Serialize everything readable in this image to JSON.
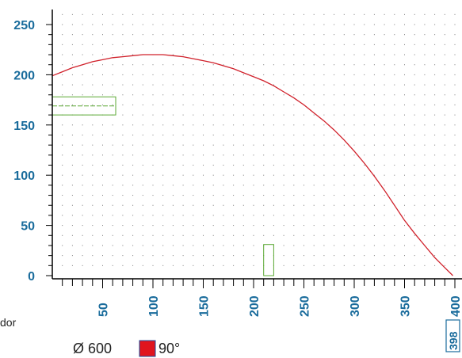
{
  "chart_data": {
    "type": "line",
    "title": "",
    "xlabel": "",
    "ylabel": "",
    "x_ticks": [
      50,
      100,
      150,
      200,
      250,
      300,
      350,
      400
    ],
    "y_ticks": [
      0,
      50,
      100,
      150,
      200,
      250
    ],
    "xlim": [
      0,
      400
    ],
    "ylim": [
      0,
      255
    ],
    "grid": true,
    "series": [
      {
        "x": [
          0,
          10,
          20,
          30,
          40,
          50,
          60,
          70,
          80,
          90,
          100,
          110,
          120,
          130,
          140,
          150,
          160,
          170,
          180,
          190,
          200,
          210,
          220,
          230,
          240,
          250,
          260,
          270,
          280,
          290,
          300,
          310,
          320,
          330,
          340,
          350,
          360,
          370,
          380,
          390,
          398
        ],
        "y": [
          199,
          203,
          207,
          210,
          213,
          215,
          217,
          218,
          219,
          220,
          220,
          220,
          219,
          218,
          216,
          214,
          212,
          209,
          206,
          202,
          198,
          194,
          189,
          183,
          177,
          170,
          162,
          154,
          145,
          135,
          124,
          112,
          99,
          85,
          70,
          55,
          42,
          30,
          18,
          8,
          0
        ],
        "color": "#d0202a"
      }
    ],
    "rects": [
      {
        "x0": 0,
        "x1": 63,
        "y0": 160,
        "y1": 178,
        "color": "#5aa832"
      },
      {
        "x0": 210,
        "x1": 220,
        "y0": 0,
        "y1": 31,
        "color": "#5aa832"
      }
    ],
    "left_partial_label": "dor",
    "diameter_label": "Ø 600",
    "angle_label": "90°",
    "angle_color": "#e0141e",
    "end_marker": "398"
  }
}
